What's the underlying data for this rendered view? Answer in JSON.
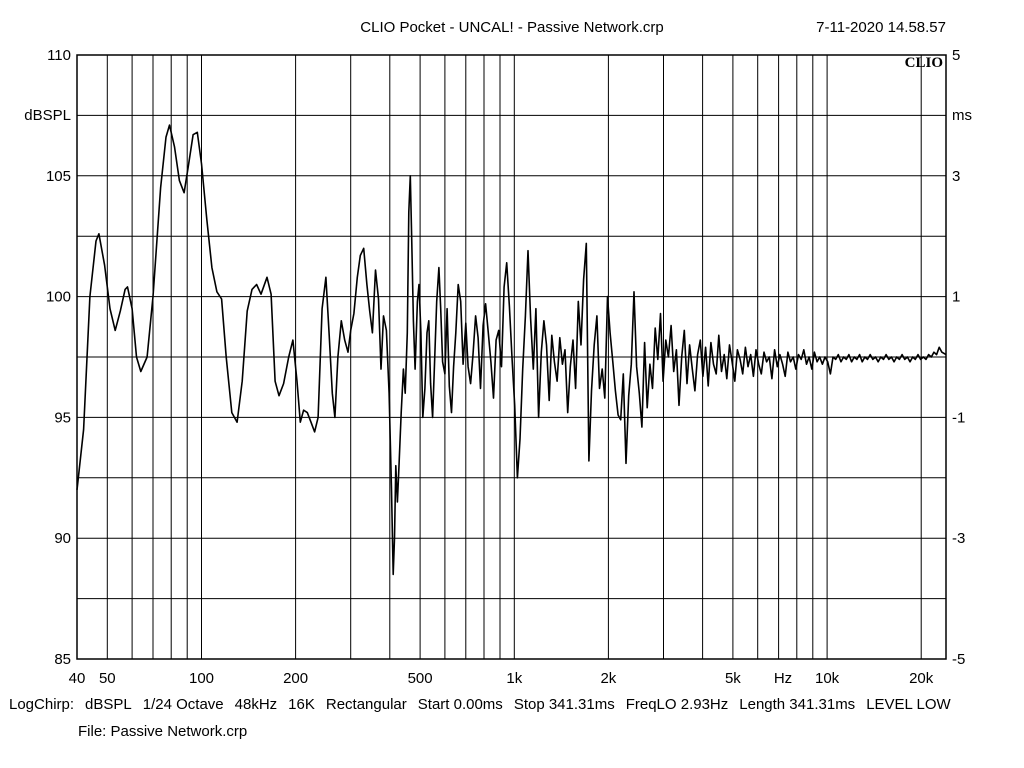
{
  "header": {
    "title": "CLIO Pocket - UNCAL! - Passive Network.crp",
    "timestamp": "7-11-2020 14.58.57",
    "brand": "CLIO"
  },
  "chart_data": {
    "type": "line",
    "x_scale": "log",
    "xlim": [
      40,
      24000
    ],
    "ylim": [
      85,
      110
    ],
    "y2lim": [
      -5,
      5
    ],
    "grid": true,
    "ylabel": "dBSPL",
    "y2label": "ms",
    "xunit": "Hz",
    "y_ticks": [
      110,
      105,
      100,
      95,
      90,
      85
    ],
    "y2_ticks": [
      5,
      3,
      1,
      -1,
      -3,
      -5
    ],
    "x_ticks": [
      {
        "v": 40,
        "label": "40"
      },
      {
        "v": 50,
        "label": "50"
      },
      {
        "v": 100,
        "label": "100"
      },
      {
        "v": 200,
        "label": "200"
      },
      {
        "v": 500,
        "label": "500"
      },
      {
        "v": 1000,
        "label": "1k"
      },
      {
        "v": 2000,
        "label": "2k"
      },
      {
        "v": 5000,
        "label": "5k"
      },
      {
        "v": 10000,
        "label": "10k"
      },
      {
        "v": 20000,
        "label": "20k"
      }
    ],
    "series": [
      {
        "color": "#000000",
        "points": [
          [
            40,
            92
          ],
          [
            42,
            94.5
          ],
          [
            44,
            100
          ],
          [
            46,
            102.3
          ],
          [
            47,
            102.6
          ],
          [
            49,
            101.3
          ],
          [
            51,
            99.5
          ],
          [
            53,
            98.6
          ],
          [
            55,
            99.4
          ],
          [
            57,
            100.3
          ],
          [
            58,
            100.4
          ],
          [
            60,
            99.5
          ],
          [
            62,
            97.5
          ],
          [
            64,
            96.9
          ],
          [
            67,
            97.5
          ],
          [
            70,
            100
          ],
          [
            74,
            104.5
          ],
          [
            77,
            106.6
          ],
          [
            79,
            107.1
          ],
          [
            82,
            106.2
          ],
          [
            85,
            104.8
          ],
          [
            88,
            104.3
          ],
          [
            91,
            105.5
          ],
          [
            94,
            106.7
          ],
          [
            97,
            106.8
          ],
          [
            100,
            105.5
          ],
          [
            104,
            103.2
          ],
          [
            108,
            101.2
          ],
          [
            112,
            100.2
          ],
          [
            116,
            99.9
          ],
          [
            120,
            97.5
          ],
          [
            125,
            95.2
          ],
          [
            130,
            94.8
          ],
          [
            135,
            96.5
          ],
          [
            140,
            99.4
          ],
          [
            145,
            100.3
          ],
          [
            150,
            100.5
          ],
          [
            155,
            100.1
          ],
          [
            162,
            100.8
          ],
          [
            167,
            100.1
          ],
          [
            172,
            96.5
          ],
          [
            177,
            95.9
          ],
          [
            183,
            96.4
          ],
          [
            190,
            97.5
          ],
          [
            196,
            98.2
          ],
          [
            202,
            96.5
          ],
          [
            207,
            94.8
          ],
          [
            212,
            95.3
          ],
          [
            218,
            95.2
          ],
          [
            224,
            94.8
          ],
          [
            230,
            94.4
          ],
          [
            236,
            95
          ],
          [
            243,
            99.5
          ],
          [
            250,
            100.8
          ],
          [
            256,
            98.4
          ],
          [
            262,
            96
          ],
          [
            267,
            95
          ],
          [
            273,
            97.5
          ],
          [
            280,
            99
          ],
          [
            287,
            98.2
          ],
          [
            294,
            97.7
          ],
          [
            300,
            98.6
          ],
          [
            307,
            99.3
          ],
          [
            315,
            100.8
          ],
          [
            322,
            101.7
          ],
          [
            330,
            102
          ],
          [
            338,
            100.5
          ],
          [
            345,
            99.4
          ],
          [
            352,
            98.5
          ],
          [
            360,
            101.1
          ],
          [
            368,
            99.9
          ],
          [
            375,
            97
          ],
          [
            382,
            99.2
          ],
          [
            390,
            98.6
          ],
          [
            398,
            96
          ],
          [
            405,
            92
          ],
          [
            410,
            88.5
          ],
          [
            414,
            90
          ],
          [
            418,
            93
          ],
          [
            423,
            91.5
          ],
          [
            428,
            93
          ],
          [
            435,
            95.2
          ],
          [
            442,
            97
          ],
          [
            448,
            96
          ],
          [
            455,
            98.5
          ],
          [
            460,
            103.5
          ],
          [
            465,
            105
          ],
          [
            470,
            102.4
          ],
          [
            476,
            99
          ],
          [
            482,
            97
          ],
          [
            490,
            99.8
          ],
          [
            496,
            100.5
          ],
          [
            503,
            98.5
          ],
          [
            510,
            95
          ],
          [
            518,
            96.2
          ],
          [
            526,
            98.5
          ],
          [
            533,
            99
          ],
          [
            540,
            96.4
          ],
          [
            548,
            95
          ],
          [
            556,
            97.2
          ],
          [
            565,
            99.8
          ],
          [
            574,
            101.2
          ],
          [
            582,
            99.5
          ],
          [
            590,
            97.3
          ],
          [
            600,
            96.8
          ],
          [
            610,
            99.5
          ],
          [
            620,
            96.3
          ],
          [
            630,
            95.2
          ],
          [
            640,
            97.1
          ],
          [
            650,
            98.5
          ],
          [
            662,
            100.5
          ],
          [
            674,
            99.8
          ],
          [
            686,
            97.2
          ],
          [
            700,
            98.9
          ],
          [
            712,
            97.1
          ],
          [
            725,
            96.4
          ],
          [
            738,
            97.6
          ],
          [
            752,
            99.2
          ],
          [
            766,
            98.3
          ],
          [
            780,
            96.2
          ],
          [
            795,
            98.8
          ],
          [
            810,
            99.7
          ],
          [
            826,
            98.5
          ],
          [
            842,
            97.3
          ],
          [
            858,
            95.8
          ],
          [
            875,
            98.2
          ],
          [
            892,
            98.6
          ],
          [
            910,
            97.1
          ],
          [
            928,
            100.4
          ],
          [
            946,
            101.4
          ],
          [
            965,
            99.6
          ],
          [
            984,
            97.4
          ],
          [
            1003,
            95.5
          ],
          [
            1023,
            92.5
          ],
          [
            1043,
            94.1
          ],
          [
            1064,
            97
          ],
          [
            1085,
            99.2
          ],
          [
            1106,
            101.9
          ],
          [
            1128,
            99.1
          ],
          [
            1150,
            97
          ],
          [
            1173,
            99.5
          ],
          [
            1196,
            95
          ],
          [
            1220,
            97.7
          ],
          [
            1244,
            99
          ],
          [
            1268,
            98
          ],
          [
            1293,
            95.7
          ],
          [
            1318,
            98.4
          ],
          [
            1344,
            97.3
          ],
          [
            1371,
            96.5
          ],
          [
            1398,
            98.3
          ],
          [
            1425,
            97.2
          ],
          [
            1453,
            97.8
          ],
          [
            1482,
            95.2
          ],
          [
            1511,
            97.1
          ],
          [
            1541,
            98.2
          ],
          [
            1571,
            96.2
          ],
          [
            1602,
            99.8
          ],
          [
            1634,
            98
          ],
          [
            1666,
            100.7
          ],
          [
            1699,
            102.2
          ],
          [
            1732,
            93.2
          ],
          [
            1766,
            96.1
          ],
          [
            1801,
            98
          ],
          [
            1837,
            99.2
          ],
          [
            1873,
            96.2
          ],
          [
            1910,
            97
          ],
          [
            1947,
            95.8
          ],
          [
            1986,
            100
          ],
          [
            2025,
            98.5
          ],
          [
            2065,
            97.3
          ],
          [
            2106,
            96.1
          ],
          [
            2147,
            95.1
          ],
          [
            2189,
            94.9
          ],
          [
            2232,
            96.8
          ],
          [
            2276,
            93.1
          ],
          [
            2321,
            95.9
          ],
          [
            2367,
            97.2
          ],
          [
            2414,
            100.2
          ],
          [
            2461,
            97.1
          ],
          [
            2510,
            96
          ],
          [
            2559,
            94.6
          ],
          [
            2610,
            98.1
          ],
          [
            2661,
            95.4
          ],
          [
            2713,
            97.2
          ],
          [
            2767,
            96.2
          ],
          [
            2821,
            98.7
          ],
          [
            2877,
            97.4
          ],
          [
            2934,
            99.3
          ],
          [
            2991,
            96.5
          ],
          [
            3050,
            98.2
          ],
          [
            3110,
            97.5
          ],
          [
            3172,
            98.8
          ],
          [
            3234,
            96.9
          ],
          [
            3298,
            97.8
          ],
          [
            3363,
            95.5
          ],
          [
            3429,
            97.5
          ],
          [
            3497,
            98.6
          ],
          [
            3566,
            96.4
          ],
          [
            3636,
            98
          ],
          [
            3708,
            97
          ],
          [
            3781,
            96.1
          ],
          [
            3856,
            97.6
          ],
          [
            3932,
            98.2
          ],
          [
            4009,
            96.7
          ],
          [
            4089,
            97.9
          ],
          [
            4169,
            96.3
          ],
          [
            4252,
            98.1
          ],
          [
            4335,
            97.2
          ],
          [
            4421,
            96.8
          ],
          [
            4508,
            98.4
          ],
          [
            4597,
            96.9
          ],
          [
            4688,
            97.6
          ],
          [
            4780,
            96.6
          ],
          [
            4875,
            98
          ],
          [
            4971,
            97.3
          ],
          [
            5069,
            96.5
          ],
          [
            5169,
            97.8
          ],
          [
            5271,
            97.4
          ],
          [
            5375,
            96.8
          ],
          [
            5481,
            97.9
          ],
          [
            5589,
            97.1
          ],
          [
            5700,
            97.6
          ],
          [
            5812,
            96.7
          ],
          [
            5927,
            97.8
          ],
          [
            6044,
            97.2
          ],
          [
            6163,
            96.8
          ],
          [
            6285,
            97.7
          ],
          [
            6409,
            97.3
          ],
          [
            6535,
            97.5
          ],
          [
            6664,
            96.6
          ],
          [
            6796,
            97.8
          ],
          [
            6930,
            97.1
          ],
          [
            7067,
            97.6
          ],
          [
            7206,
            97.2
          ],
          [
            7348,
            96.7
          ],
          [
            7493,
            97.7
          ],
          [
            7641,
            97.3
          ],
          [
            7792,
            97.5
          ],
          [
            7946,
            97
          ],
          [
            8103,
            97.6
          ],
          [
            8263,
            97.4
          ],
          [
            8426,
            97.8
          ],
          [
            8592,
            97.2
          ],
          [
            8762,
            97.5
          ],
          [
            8935,
            97
          ],
          [
            9111,
            97.7
          ],
          [
            9291,
            97.3
          ],
          [
            9474,
            97.5
          ],
          [
            9661,
            97.2
          ],
          [
            9852,
            97.5
          ],
          [
            10046,
            97.3
          ],
          [
            10245,
            96.8
          ],
          [
            10447,
            97.5
          ],
          [
            10653,
            97.4
          ],
          [
            10863,
            97.6
          ],
          [
            11078,
            97.3
          ],
          [
            11297,
            97.5
          ],
          [
            11520,
            97.4
          ],
          [
            11747,
            97.6
          ],
          [
            11979,
            97.3
          ],
          [
            12216,
            97.5
          ],
          [
            12457,
            97.4
          ],
          [
            12703,
            97.6
          ],
          [
            12953,
            97.3
          ],
          [
            13209,
            97.5
          ],
          [
            13470,
            97.4
          ],
          [
            13736,
            97.6
          ],
          [
            14007,
            97.4
          ],
          [
            14283,
            97.5
          ],
          [
            14565,
            97.3
          ],
          [
            14853,
            97.5
          ],
          [
            15146,
            97.4
          ],
          [
            15445,
            97.6
          ],
          [
            15750,
            97.4
          ],
          [
            16061,
            97.5
          ],
          [
            16378,
            97.3
          ],
          [
            16701,
            97.5
          ],
          [
            17031,
            97.4
          ],
          [
            17367,
            97.6
          ],
          [
            17710,
            97.4
          ],
          [
            18060,
            97.5
          ],
          [
            18416,
            97.3
          ],
          [
            18780,
            97.5
          ],
          [
            19150,
            97.4
          ],
          [
            19529,
            97.6
          ],
          [
            19914,
            97.4
          ],
          [
            20307,
            97.5
          ],
          [
            20708,
            97.4
          ],
          [
            21117,
            97.6
          ],
          [
            21534,
            97.5
          ],
          [
            21959,
            97.7
          ],
          [
            22393,
            97.6
          ],
          [
            22835,
            97.9
          ],
          [
            23286,
            97.7
          ],
          [
            24000,
            97.6
          ]
        ]
      }
    ]
  },
  "settings": {
    "items": [
      "LogChirp:",
      "dBSPL",
      "1/24 Octave",
      "48kHz",
      "16K",
      "Rectangular",
      "Start 0.00ms",
      "Stop 341.31ms",
      "FreqLO 2.93Hz",
      "Length 341.31ms",
      "LEVEL LOW"
    ]
  },
  "file": {
    "label": "File: Passive Network.crp"
  }
}
